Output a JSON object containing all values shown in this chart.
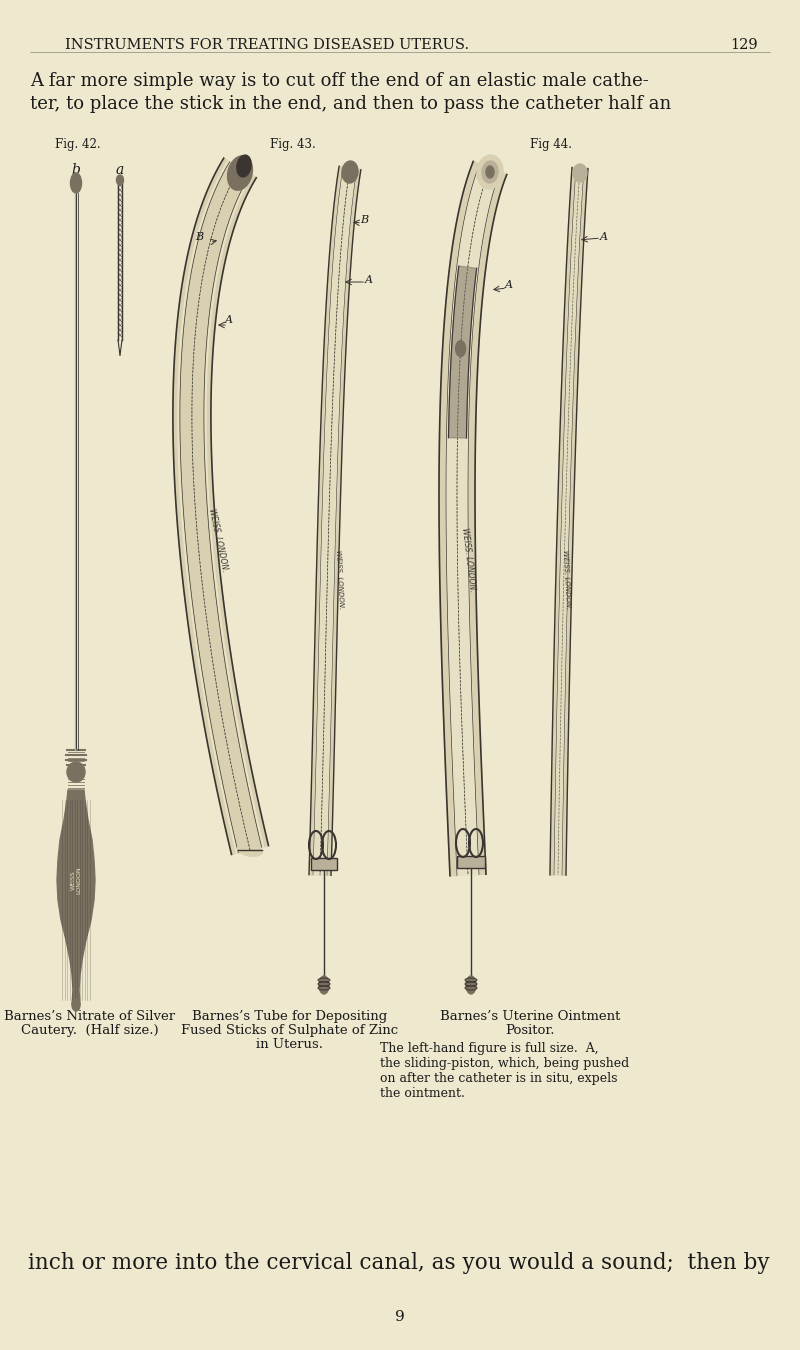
{
  "background_color": "#ede8ce",
  "header_text": "INSTRUMENTS FOR TREATING DISEASED UTERUS.",
  "page_number": "129",
  "top_para_line1": "A far more simple way is to cut off the end of an elastic male cathe-",
  "top_para_line2": "ter, to place the stick in the end, and then to pass the catheter half an",
  "fig42_label": "Fig. 42.",
  "fig43_label": "Fig. 43.",
  "fig44_label": "Fig 44.",
  "caption1_line1": "Barnes’s Nitrate of Silver",
  "caption1_line2": "Cautery.  (Half size.)",
  "caption2_line1": "Barnes’s Tube for Depositing",
  "caption2_line2": "Fused Sticks of Sulphate of Zinc",
  "caption2_line3": "in Uterus.",
  "caption3_line1": "Barnes’s Uterine Ointment",
  "caption3_line2": "Positor.",
  "caption3_body": "The left-hand figure is full size.  A,\nthe sliding-piston, which, being pushed\non after the catheter is in situ, expels\nthe ointment.",
  "bottom_para": "inch or more into the cervical canal, as you would a sound;  then by",
  "page_num_bottom": "9",
  "dgray": "#3a3530",
  "mgray": "#7a7060",
  "lgray": "#b8b098",
  "tube_fill": "#d8d0b0",
  "handle_color": "#6a6050"
}
